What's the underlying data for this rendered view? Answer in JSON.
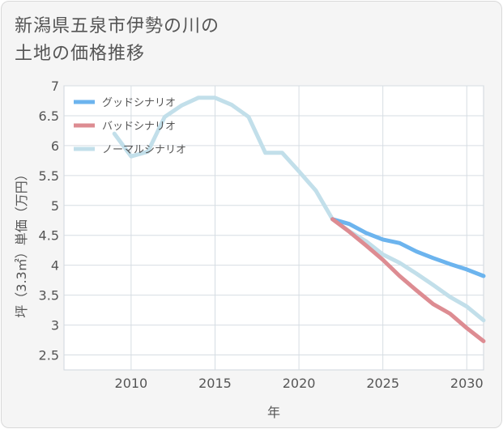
{
  "chart_data": {
    "type": "line",
    "title_lines": [
      "新潟県五泉市伊勢の川の",
      "土地の価格推移"
    ],
    "xlabel": "年",
    "ylabel": "坪（3.3㎡）単価（万円）",
    "xlim": [
      2006,
      2031
    ],
    "ylim": [
      2.25,
      7
    ],
    "x_ticks": [
      2010,
      2015,
      2020,
      2025,
      2030
    ],
    "y_ticks": [
      2.5,
      3,
      3.5,
      4,
      4.5,
      5,
      5.5,
      6,
      6.5,
      7
    ],
    "y_tick_labels": [
      "2.5",
      "3",
      "3.5",
      "4",
      "4.5",
      "5",
      "5.5",
      "6",
      "6.5",
      "7"
    ],
    "grid": true,
    "legend_position": "top-left",
    "series": [
      {
        "name": "グッドシナリオ",
        "color": "#6cb4ee",
        "x": [
          2022,
          2023,
          2024,
          2025,
          2026,
          2027,
          2028,
          2029,
          2030,
          2031
        ],
        "y": [
          4.77,
          4.69,
          4.54,
          4.43,
          4.37,
          4.23,
          4.12,
          4.02,
          3.93,
          3.82
        ]
      },
      {
        "name": "バッドシナリオ",
        "color": "#dd8c92",
        "x": [
          2022,
          2023,
          2024,
          2025,
          2026,
          2027,
          2028,
          2029,
          2030,
          2031
        ],
        "y": [
          4.77,
          4.56,
          4.33,
          4.09,
          3.82,
          3.58,
          3.35,
          3.19,
          2.95,
          2.73
        ]
      },
      {
        "name": "ノーマルシナリオ",
        "color": "#c2dfea",
        "x": [
          2009,
          2010,
          2011,
          2012,
          2013,
          2014,
          2015,
          2016,
          2017,
          2018,
          2019,
          2020,
          2021,
          2022,
          2023,
          2024,
          2025,
          2026,
          2027,
          2028,
          2029,
          2030,
          2031
        ],
        "y": [
          6.2,
          5.82,
          5.9,
          6.48,
          6.67,
          6.8,
          6.8,
          6.68,
          6.48,
          5.88,
          5.88,
          5.57,
          5.25,
          4.77,
          4.57,
          4.4,
          4.18,
          4.04,
          3.86,
          3.67,
          3.47,
          3.31,
          3.08
        ]
      }
    ]
  }
}
